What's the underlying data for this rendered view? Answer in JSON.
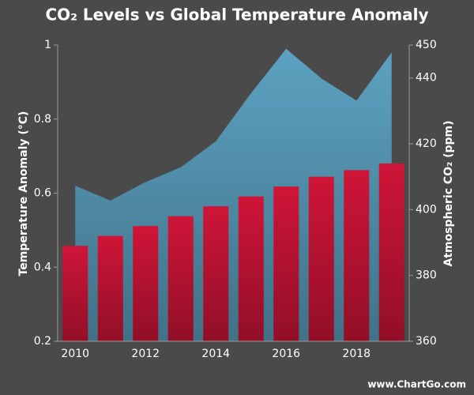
{
  "chart_data": {
    "type": "bar-area",
    "title": "CO₂ Levels vs Global Temperature Anomaly",
    "y_label": "Temperature Anomaly (°C)",
    "y2_label": "Atmospheric CO₂ (ppm)",
    "watermark": "www.ChartGo.com",
    "categories": [
      "2010",
      null,
      "2012",
      null,
      "2014",
      null,
      "2016",
      null,
      "2018",
      null
    ],
    "series": [
      {
        "name": "Temperature Anomaly",
        "type": "area",
        "axis": "y",
        "color": "#5da7c7",
        "values": [
          0.62,
          0.58,
          0.63,
          0.67,
          0.74,
          0.87,
          0.99,
          0.91,
          0.85,
          0.98
        ]
      },
      {
        "name": "Atmospheric CO₂",
        "type": "bar",
        "axis": "y2",
        "color": "#cf1538",
        "values": [
          389,
          392,
          395,
          398,
          401,
          404,
          407,
          410,
          412,
          414
        ]
      }
    ],
    "ylim": [
      0.2,
      1
    ],
    "yticks": [
      0.2,
      0.4,
      0.6,
      0.8,
      1
    ],
    "y2lim": [
      360,
      450
    ],
    "y2ticks": [
      360,
      380,
      400,
      420,
      440,
      450
    ]
  }
}
